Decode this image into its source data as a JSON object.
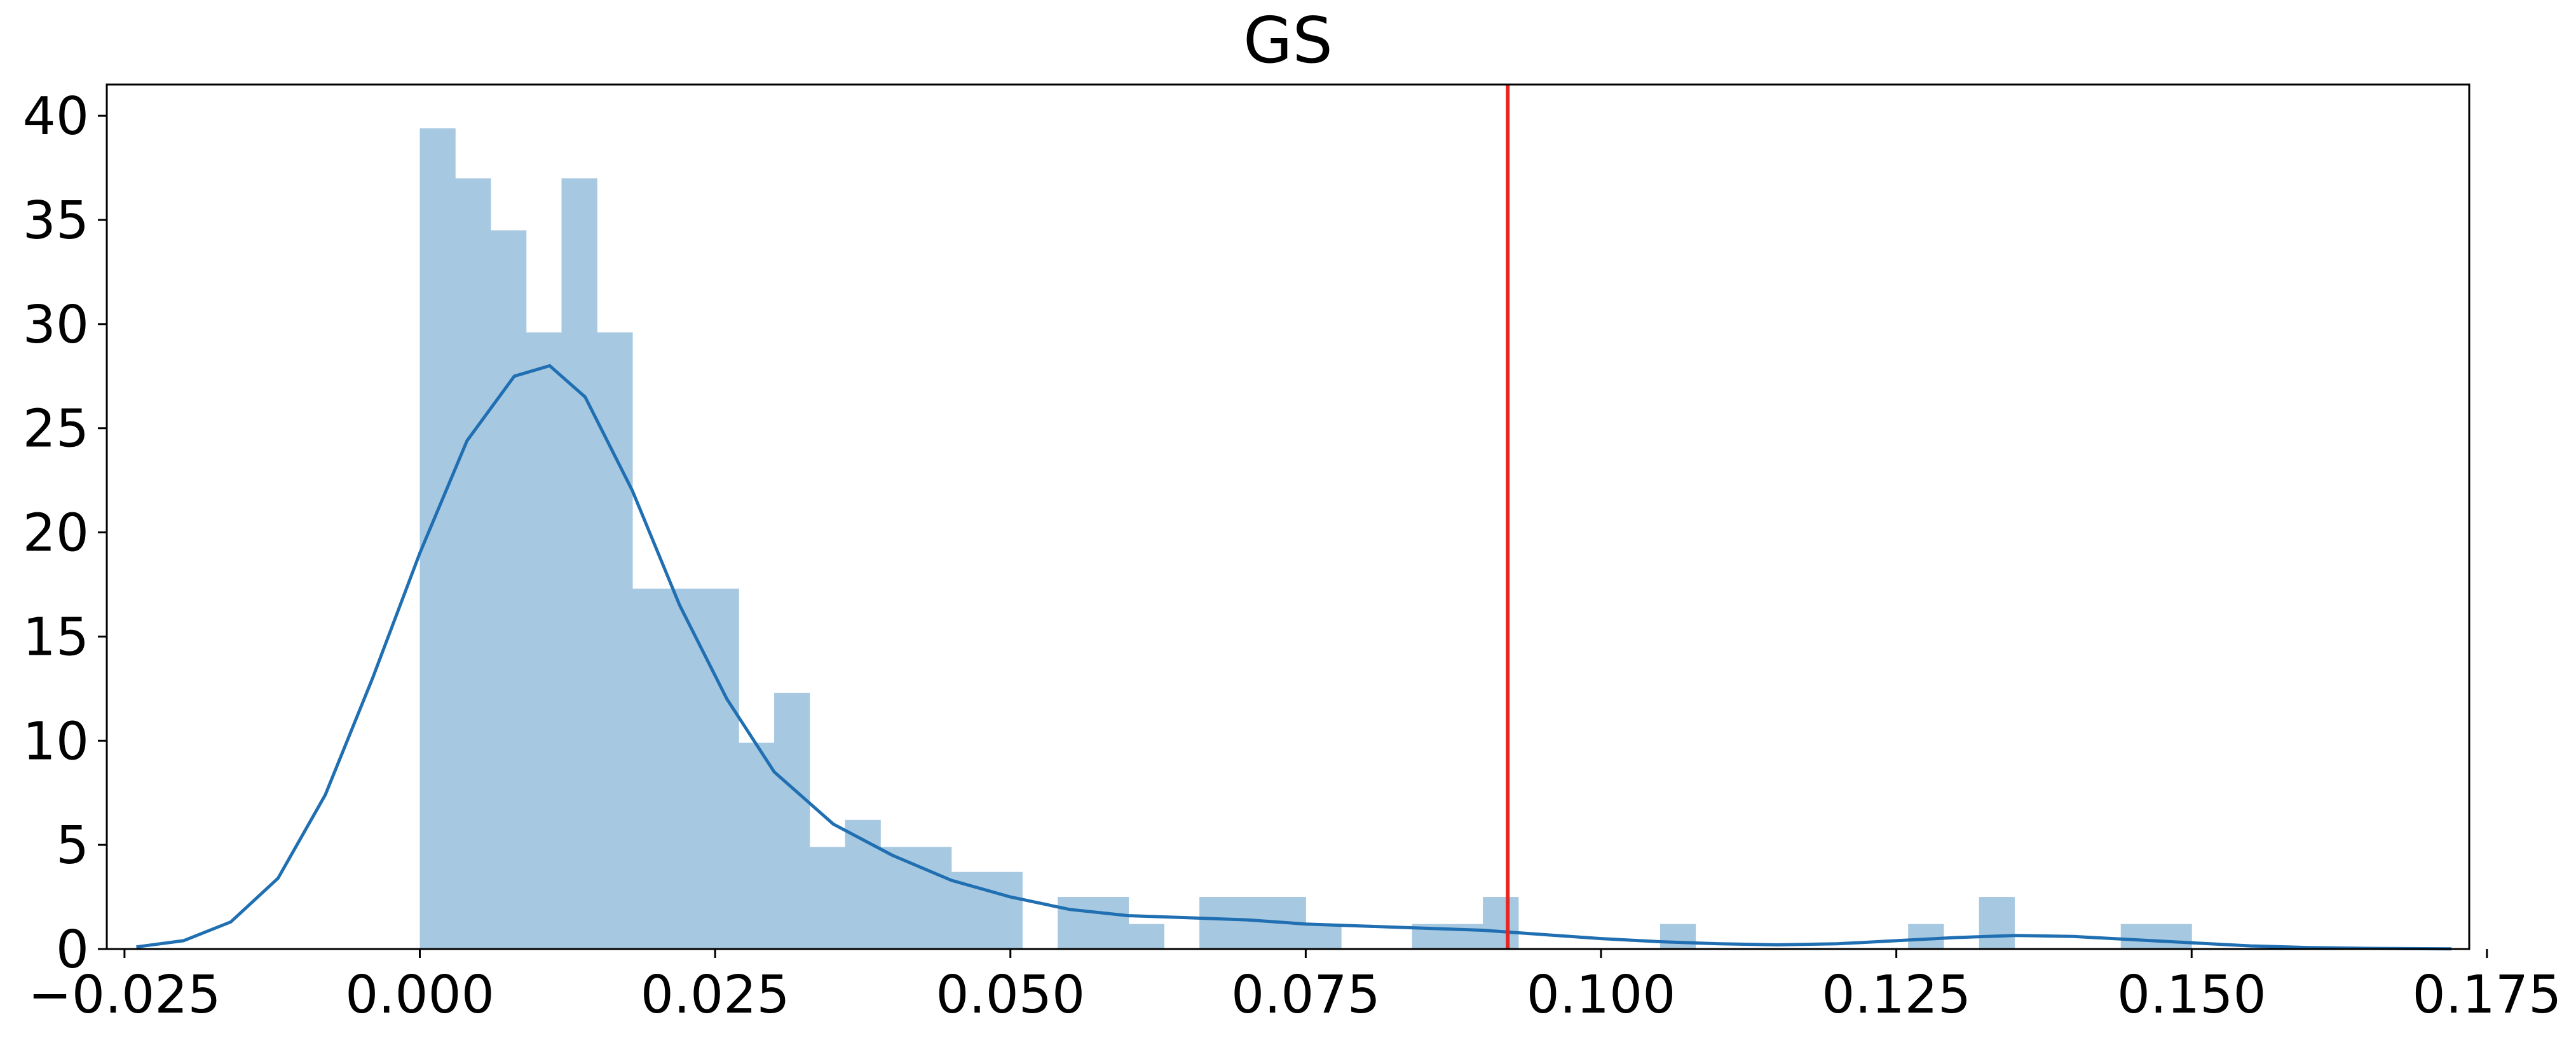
{
  "chart_data": {
    "type": "bar",
    "title": "GS",
    "xlabel": "",
    "ylabel": "",
    "xlim": [
      -0.0265,
      0.1735
    ],
    "ylim": [
      0,
      41.5
    ],
    "x_ticks": [
      -0.025,
      0.0,
      0.025,
      0.05,
      0.075,
      0.1,
      0.125,
      0.15,
      0.175
    ],
    "x_tick_labels": [
      "−0.025",
      "0.000",
      "0.025",
      "0.050",
      "0.075",
      "0.100",
      "0.125",
      "0.150",
      "0.175"
    ],
    "y_ticks": [
      0,
      5,
      10,
      15,
      20,
      25,
      30,
      35,
      40
    ],
    "y_tick_labels": [
      "0",
      "5",
      "10",
      "15",
      "20",
      "25",
      "30",
      "35",
      "40"
    ],
    "grid": false,
    "colors": {
      "histogram": "#a6c8e0",
      "kde": "#1f6fb2",
      "vline": "#e8251f"
    },
    "histogram": {
      "bin_width": 0.003,
      "bin_starts": [
        0.0,
        0.003,
        0.006,
        0.009,
        0.012,
        0.015,
        0.018,
        0.021,
        0.024,
        0.027,
        0.03,
        0.033,
        0.036,
        0.039,
        0.042,
        0.045,
        0.048,
        0.054,
        0.057,
        0.06,
        0.066,
        0.069,
        0.072,
        0.075,
        0.084,
        0.087,
        0.09,
        0.105,
        0.126,
        0.132,
        0.144,
        0.147
      ],
      "values": [
        39.4,
        37.0,
        34.5,
        29.6,
        37.0,
        29.6,
        17.3,
        17.3,
        17.3,
        9.9,
        12.3,
        4.9,
        6.2,
        4.9,
        4.9,
        3.7,
        3.7,
        2.5,
        2.5,
        1.2,
        2.5,
        2.5,
        2.5,
        1.2,
        1.2,
        1.2,
        2.5,
        1.2,
        1.2,
        2.5,
        1.2,
        1.2
      ]
    },
    "kde": {
      "x": [
        -0.024,
        -0.02,
        -0.016,
        -0.012,
        -0.008,
        -0.004,
        0.0,
        0.004,
        0.008,
        0.011,
        0.014,
        0.018,
        0.022,
        0.026,
        0.03,
        0.035,
        0.04,
        0.045,
        0.05,
        0.055,
        0.06,
        0.065,
        0.07,
        0.075,
        0.08,
        0.085,
        0.09,
        0.095,
        0.1,
        0.105,
        0.11,
        0.115,
        0.12,
        0.125,
        0.13,
        0.135,
        0.14,
        0.145,
        0.15,
        0.155,
        0.16,
        0.165,
        0.172
      ],
      "y": [
        0.1,
        0.4,
        1.3,
        3.4,
        7.4,
        13.0,
        19.0,
        24.4,
        27.5,
        28.0,
        26.5,
        22.0,
        16.5,
        12.0,
        8.5,
        6.0,
        4.5,
        3.3,
        2.5,
        1.9,
        1.6,
        1.5,
        1.4,
        1.2,
        1.1,
        1.0,
        0.9,
        0.7,
        0.5,
        0.35,
        0.25,
        0.2,
        0.25,
        0.4,
        0.55,
        0.65,
        0.6,
        0.45,
        0.3,
        0.15,
        0.07,
        0.03,
        0.01
      ]
    },
    "vline": {
      "x": 0.0921
    }
  }
}
